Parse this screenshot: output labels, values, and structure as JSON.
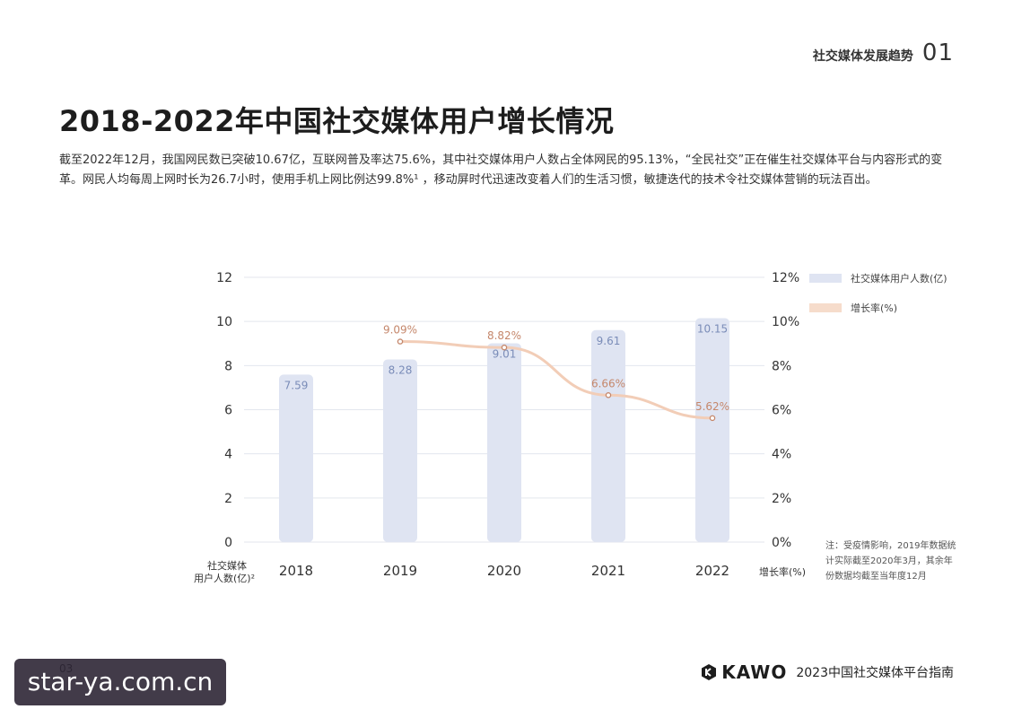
{
  "header": {
    "section_name": "社交媒体发展趋势",
    "section_number": "01"
  },
  "page_title": "2018-2022年中国社交媒体用户增长情况",
  "intro_text": "截至2022年12月，我国网民数已突破10.67亿，互联网普及率达75.6%，其中社交媒体用户人数占全体网民的95.13%，“全民社交”正在催生社交媒体平台与内容形式的变革。网民人均每周上网时长为26.7小时，使用手机上网比例达99.8%¹ ，移动屏时代迅速改变着人们的生活习惯，敏捷迭代的技术令社交媒体营销的玩法百出。",
  "chart_data": {
    "type": "bar",
    "categories": [
      "2018",
      "2019",
      "2020",
      "2021",
      "2022"
    ],
    "series": [
      {
        "name": "社交媒体用户人数(亿)",
        "type": "bar",
        "axis": "left",
        "values": [
          7.59,
          8.28,
          9.01,
          9.61,
          10.15
        ],
        "labels": [
          "7.59",
          "8.28",
          "9.01",
          "9.61",
          "10.15"
        ]
      },
      {
        "name": "增长率(%)",
        "type": "line",
        "axis": "right",
        "values": [
          null,
          9.09,
          8.82,
          6.66,
          5.62
        ],
        "labels": [
          null,
          "9.09%",
          "8.82%",
          "6.66%",
          "5.62%"
        ]
      }
    ],
    "ylim": [
      0,
      12
    ],
    "y_ticks": [
      "0",
      "2",
      "4",
      "6",
      "8",
      "10",
      "12"
    ],
    "y2lim": [
      0,
      12
    ],
    "y2_ticks": [
      "0%",
      "2%",
      "4%",
      "6%",
      "8%",
      "10%",
      "12%"
    ],
    "ylabel_lines": [
      "社交媒体",
      "用户人数(亿)²"
    ],
    "y2label": "增长率(%)",
    "grid": true,
    "legend_position": "top-right"
  },
  "colors": {
    "bar": "#dfe4f2",
    "bar_label": "#7a8cb8",
    "line": "#f2cdb7",
    "marker": "#c5876b",
    "line_label": "#c5876b",
    "grid": "#e3e6ee",
    "axis_text": "#333333"
  },
  "note": "注：受疫情影响，2019年数据统计实际截至2020年3月，其余年份数据均截至当年度12月",
  "footer": {
    "brand": "KAWO",
    "report": "2023中国社交媒体平台指南",
    "page": "03"
  },
  "watermark": "star-ya.com.cn"
}
